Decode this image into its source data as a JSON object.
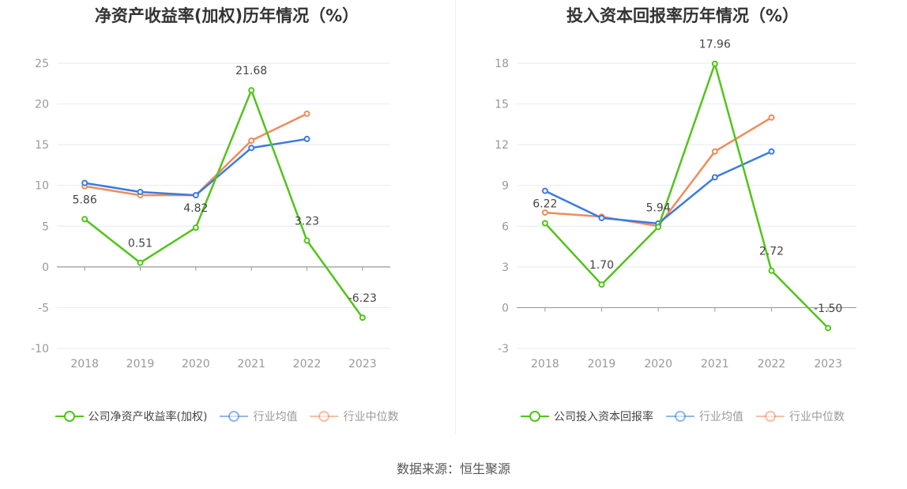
{
  "source_text": "数据来源：恒生聚源",
  "chart_data": [
    {
      "type": "line",
      "title": "净资产收益率(加权)历年情况（%）",
      "x": [
        "2018",
        "2019",
        "2020",
        "2021",
        "2022",
        "2023"
      ],
      "ylim": [
        -10,
        25
      ],
      "yticks": [
        "25",
        "20",
        "15",
        "10",
        "5",
        "0",
        "-5",
        "-10"
      ],
      "grid": true,
      "legend_position": "bottom",
      "series": [
        {
          "name": "公司净资产收益率(加权)",
          "color": "#52c41a",
          "values": [
            5.86,
            0.51,
            4.82,
            21.68,
            3.23,
            -6.23
          ],
          "labels": [
            "5.86",
            "0.51",
            "4.82",
            "21.68",
            "3.23",
            "-6.23"
          ]
        },
        {
          "name": "行业均值",
          "color": "#3b7be0",
          "values": [
            10.3,
            9.2,
            8.8,
            14.6,
            15.7,
            null
          ]
        },
        {
          "name": "行业中位数",
          "color": "#f08c5a",
          "values": [
            9.9,
            8.8,
            8.8,
            15.5,
            18.8,
            null
          ]
        }
      ]
    },
    {
      "type": "line",
      "title": "投入资本回报率历年情况（%）",
      "x": [
        "2018",
        "2019",
        "2020",
        "2021",
        "2022",
        "2023"
      ],
      "ylim": [
        -3,
        18
      ],
      "yticks": [
        "18",
        "15",
        "12",
        "9",
        "6",
        "3",
        "0",
        "-3"
      ],
      "grid": true,
      "legend_position": "bottom",
      "series": [
        {
          "name": "公司投入资本回报率",
          "color": "#52c41a",
          "values": [
            6.22,
            1.7,
            5.94,
            17.96,
            2.72,
            -1.5
          ],
          "labels": [
            "6.22",
            "1.70",
            "5.94",
            "17.96",
            "2.72",
            "-1.50"
          ]
        },
        {
          "name": "行业均值",
          "color": "#3b7be0",
          "values": [
            8.6,
            6.6,
            6.2,
            9.6,
            11.5,
            null
          ]
        },
        {
          "name": "行业中位数",
          "color": "#f08c5a",
          "values": [
            7.0,
            6.7,
            6.0,
            11.5,
            14.0,
            null
          ]
        }
      ]
    }
  ]
}
